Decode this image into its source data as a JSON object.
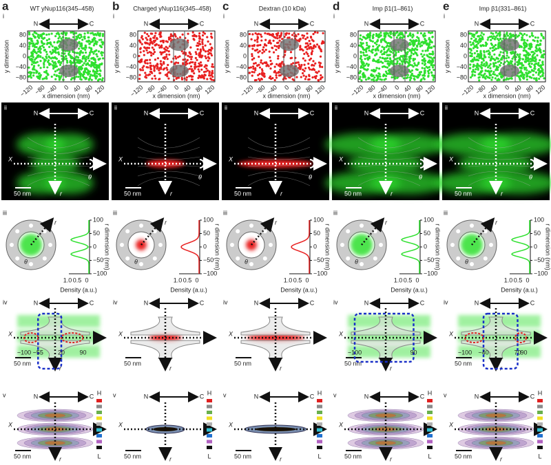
{
  "panels": [
    {
      "letter": "a",
      "title": "WT yNup116(345–458)",
      "color": "#2ee02e",
      "iv_labels": [
        "−100",
        "−55",
        "20",
        "90"
      ]
    },
    {
      "letter": "b",
      "title": "Charged yNup116(345–458)",
      "color": "#e82020",
      "iv_labels": []
    },
    {
      "letter": "c",
      "title": "Dextran (10 kDa)",
      "color": "#e82020",
      "iv_labels": []
    },
    {
      "letter": "d",
      "title": "Imp β1(1–861)",
      "color": "#2ee02e",
      "iv_labels": [
        "−100",
        "90"
      ]
    },
    {
      "letter": "e",
      "title": "Imp β1(331–861)",
      "color": "#2ee02e",
      "iv_labels": [
        "−100",
        "−40",
        "70",
        "90"
      ]
    }
  ],
  "row_labels": [
    "i",
    "ii",
    "iii",
    "iv",
    "v"
  ],
  "axis": {
    "N": "N",
    "C": "C",
    "x_label": "x dimension (nm)",
    "y_label": "y dimension",
    "x_ticks": [
      "−120",
      "−80",
      "−40",
      "0",
      "40",
      "80",
      "120"
    ],
    "y_ticks": [
      "80",
      "40",
      "0",
      "−40",
      "−80"
    ]
  },
  "cross_section": {
    "X": "X",
    "theta": "θ",
    "r": "r",
    "scale": "50 nm"
  },
  "density": {
    "x_label": "Density (a.u.)",
    "x_ticks": [
      "1.0",
      "0.5",
      "0"
    ],
    "r_label": "r dimension (nm)",
    "r_ticks": [
      "100",
      "50",
      "0",
      "−50",
      "−100"
    ]
  },
  "color_bar": {
    "high": "H",
    "low": "L"
  }
}
